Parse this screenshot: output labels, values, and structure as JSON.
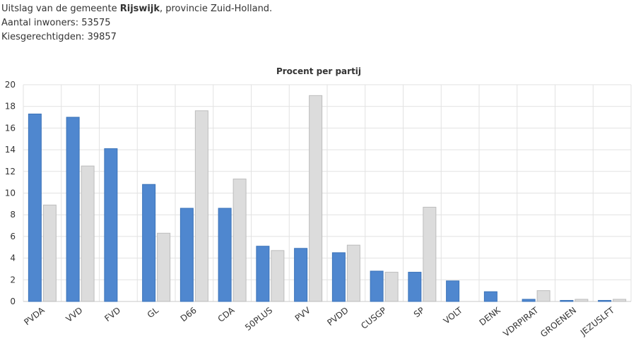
{
  "header": {
    "line1_prefix": "Uitslag van de gemeente ",
    "municipality": "Rijswijk",
    "line1_suffix": ", provincie Zuid-Holland.",
    "inhabitants_line": "Aantal inwoners: 53575",
    "voters_line": "Kiesgerechtigden: 39857"
  },
  "chart_data": {
    "type": "bar",
    "title": "Procent per partij",
    "xlabel": "",
    "ylabel": "",
    "ylim": [
      0,
      20
    ],
    "yticks": [
      0,
      2,
      4,
      6,
      8,
      10,
      12,
      14,
      16,
      18,
      20
    ],
    "grid": true,
    "categories": [
      "PVDA",
      "VVD",
      "FVD",
      "GL",
      "D66",
      "CDA",
      "50PLUS",
      "PVV",
      "PVDD",
      "CUSGP",
      "SP",
      "VOLT",
      "DENK",
      "VDRPIRAT",
      "GROENEN",
      "JEZUSLFT"
    ],
    "series": [
      {
        "color": "#4f87cf",
        "values": [
          17.3,
          17.0,
          14.1,
          10.8,
          8.6,
          8.6,
          5.1,
          4.9,
          4.5,
          2.8,
          2.7,
          1.9,
          0.9,
          0.2,
          0.1,
          0.1
        ]
      },
      {
        "color": "#dcdcdc",
        "values": [
          8.9,
          12.5,
          0,
          6.3,
          17.6,
          11.3,
          4.7,
          19.0,
          5.2,
          2.7,
          8.7,
          0,
          0,
          1.0,
          0.2,
          0.2
        ]
      }
    ]
  }
}
